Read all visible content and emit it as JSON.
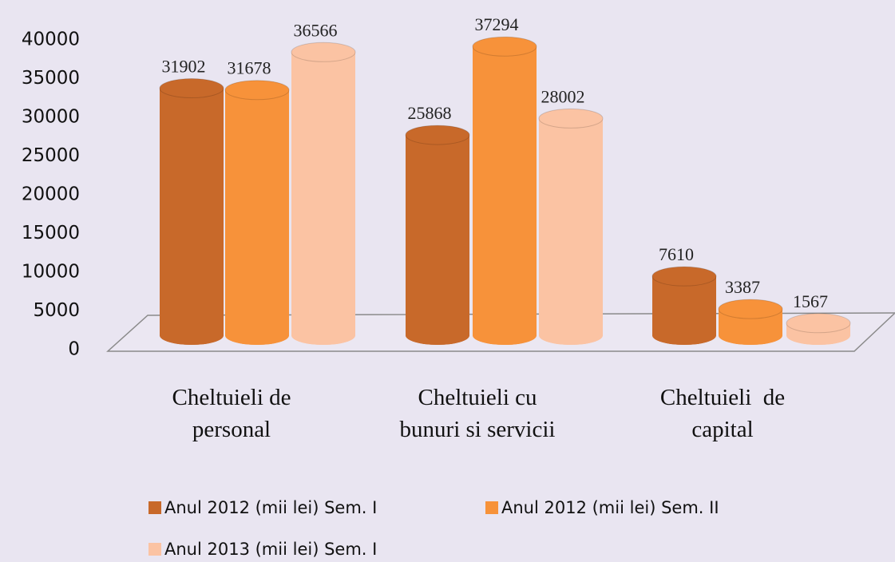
{
  "chart_data": {
    "type": "bar",
    "categories": [
      [
        "Cheltuieli de",
        "personal"
      ],
      [
        "Cheltuieli cu",
        "bunuri si servicii"
      ],
      [
        "Cheltuieli  de",
        "capital"
      ]
    ],
    "series": [
      {
        "name": "Anul 2012 (mii lei) Sem. I",
        "color": "#c8692a",
        "values": [
          31902,
          25868,
          7610
        ]
      },
      {
        "name": "Anul 2012 (mii lei) Sem. II",
        "color": "#f7923a",
        "values": [
          31678,
          37294,
          3387
        ]
      },
      {
        "name": "Anul 2013 (mii lei) Sem. I",
        "color": "#fbc3a3",
        "values": [
          36566,
          28002,
          1567
        ]
      }
    ],
    "ylim": [
      0,
      40000
    ],
    "yticks": [
      0,
      5000,
      10000,
      15000,
      20000,
      25000,
      30000,
      35000,
      40000
    ]
  }
}
